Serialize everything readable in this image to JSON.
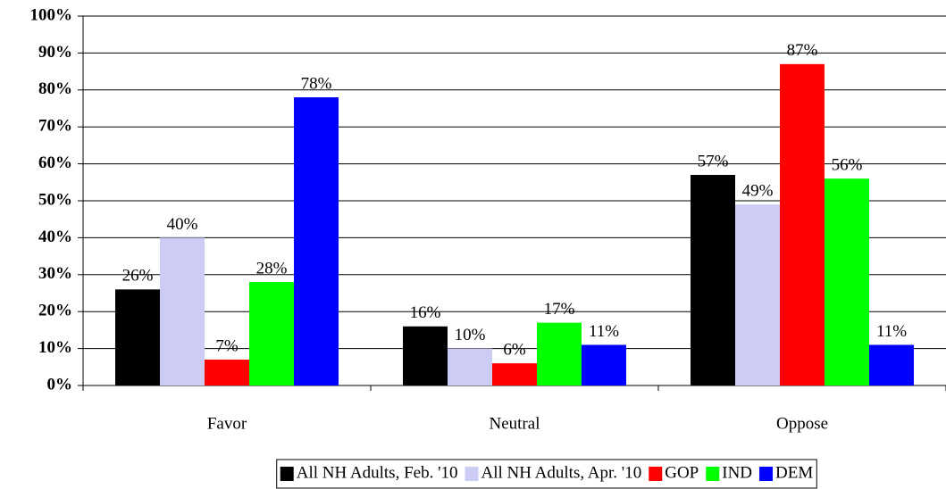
{
  "chart_data": {
    "type": "bar",
    "categories": [
      "Favor",
      "Neutral",
      "Oppose"
    ],
    "series": [
      {
        "name": "All NH Adults, Feb. '10",
        "color": "#000000",
        "values": [
          26,
          16,
          57
        ],
        "value_labels": [
          "26%",
          "16%",
          "57%"
        ]
      },
      {
        "name": "All NH Adults, Apr. '10",
        "color": "#ccccf5",
        "values": [
          40,
          10,
          49
        ],
        "value_labels": [
          "40%",
          "10%",
          "49%"
        ]
      },
      {
        "name": "GOP",
        "color": "#ff0000",
        "values": [
          7,
          6,
          87
        ],
        "value_labels": [
          "7%",
          "6%",
          "87%"
        ]
      },
      {
        "name": "IND",
        "color": "#00ff00",
        "values": [
          28,
          17,
          56
        ],
        "value_labels": [
          "28%",
          "17%",
          "56%"
        ]
      },
      {
        "name": "DEM",
        "color": "#0000ff",
        "values": [
          78,
          11,
          11
        ],
        "value_labels": [
          "78%",
          "11%",
          "11%"
        ]
      }
    ],
    "ylim": [
      0,
      100
    ],
    "yticks": [
      {
        "value": 0,
        "label": "0%"
      },
      {
        "value": 10,
        "label": "10%"
      },
      {
        "value": 20,
        "label": "20%"
      },
      {
        "value": 30,
        "label": "30%"
      },
      {
        "value": 40,
        "label": "40%"
      },
      {
        "value": 50,
        "label": "50%"
      },
      {
        "value": 60,
        "label": "60%"
      },
      {
        "value": 70,
        "label": "70%"
      },
      {
        "value": 80,
        "label": "80%"
      },
      {
        "value": 90,
        "label": "90%"
      },
      {
        "value": 100,
        "label": "100%"
      }
    ],
    "grid": true,
    "legend": "bottom"
  }
}
